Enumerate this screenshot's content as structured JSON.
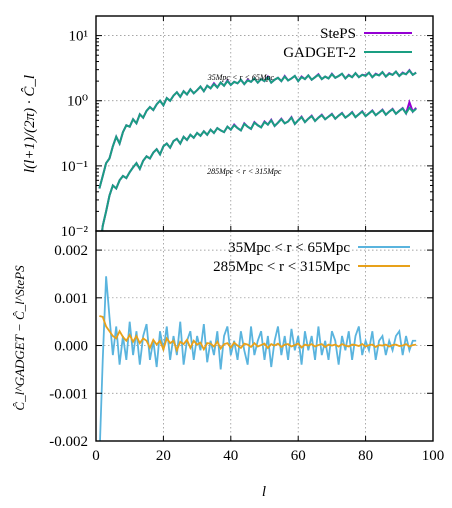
{
  "chart_data": [
    {
      "type": "line",
      "panel": "top",
      "ylabel": "l(l+1)/(2π) · Ĉ_l",
      "xlim": [
        0,
        100
      ],
      "ylim": [
        0.01,
        20
      ],
      "yscale": "log",
      "grid": true,
      "legend_position": "top-right",
      "yticks": [
        {
          "value": 10,
          "label": "10¹"
        },
        {
          "value": 1,
          "label": "10⁰"
        },
        {
          "value": 0.1,
          "label": "10⁻¹"
        },
        {
          "value": 0.01,
          "label": "10⁻²"
        }
      ],
      "series": [
        {
          "name": "StePS",
          "color": "#9400d3"
        },
        {
          "name": "GADGET-2",
          "color": "#1a9e82"
        }
      ],
      "annotations": [
        {
          "text": "35Mpc < r < 65Mpc",
          "x": 43,
          "y": 2.1
        },
        {
          "text": "285Mpc < r < 315Mpc",
          "x": 44,
          "y": 0.075
        }
      ],
      "curves": [
        {
          "label": "35Mpc < r < 65Mpc",
          "x": [
            1,
            2,
            3,
            4,
            5,
            6,
            7,
            8,
            9,
            10,
            11,
            12,
            13,
            14,
            15,
            16,
            17,
            18,
            19,
            20,
            21,
            22,
            23,
            24,
            25,
            26,
            27,
            28,
            29,
            30,
            31,
            32,
            33,
            34,
            35,
            36,
            37,
            38,
            39,
            40,
            41,
            42,
            43,
            44,
            45,
            46,
            47,
            48,
            49,
            50,
            51,
            52,
            53,
            54,
            55,
            56,
            57,
            58,
            59,
            60,
            61,
            62,
            63,
            64,
            65,
            66,
            67,
            68,
            69,
            70,
            71,
            72,
            73,
            74,
            75,
            76,
            77,
            78,
            79,
            80,
            81,
            82,
            83,
            84,
            85,
            86,
            87,
            88,
            89,
            90,
            91,
            92,
            93,
            94,
            95
          ],
          "gadget": [
            0.045,
            0.07,
            0.11,
            0.13,
            0.2,
            0.28,
            0.22,
            0.33,
            0.42,
            0.4,
            0.52,
            0.45,
            0.62,
            0.55,
            0.7,
            0.8,
            0.72,
            0.88,
            1.0,
            0.85,
            1.1,
            1.0,
            1.2,
            1.35,
            1.15,
            1.4,
            1.25,
            1.5,
            1.3,
            1.45,
            1.65,
            1.4,
            1.7,
            1.55,
            1.8,
            1.6,
            1.9,
            1.7,
            2.0,
            1.75,
            1.95,
            1.85,
            2.1,
            1.8,
            2.05,
            1.95,
            2.2,
            1.9,
            2.15,
            2.0,
            2.3,
            1.9,
            2.1,
            2.25,
            2.0,
            2.35,
            2.05,
            2.2,
            2.4,
            2.0,
            2.3,
            2.15,
            2.45,
            2.1,
            2.3,
            2.5,
            2.15,
            2.35,
            2.2,
            2.55,
            2.25,
            2.4,
            2.6,
            2.2,
            2.45,
            2.3,
            2.65,
            2.3,
            2.5,
            2.4,
            2.7,
            2.3,
            2.55,
            2.45,
            2.75,
            2.35,
            2.6,
            2.5,
            2.8,
            2.4,
            2.65,
            2.55,
            2.9,
            2.5,
            2.7
          ],
          "steps": [
            0.045,
            0.07,
            0.11,
            0.13,
            0.2,
            0.28,
            0.22,
            0.33,
            0.42,
            0.4,
            0.52,
            0.45,
            0.62,
            0.55,
            0.7,
            0.8,
            0.72,
            0.88,
            1.0,
            0.85,
            1.1,
            1.0,
            1.2,
            1.35,
            1.15,
            1.4,
            1.25,
            1.5,
            1.3,
            1.45,
            1.65,
            1.4,
            1.7,
            1.55,
            1.85,
            1.6,
            1.9,
            1.7,
            2.05,
            1.75,
            1.95,
            1.85,
            2.1,
            1.8,
            2.1,
            1.95,
            2.2,
            1.9,
            2.15,
            2.0,
            2.35,
            1.9,
            2.1,
            2.25,
            2.0,
            2.4,
            2.05,
            2.2,
            2.4,
            2.0,
            2.35,
            2.15,
            2.45,
            2.1,
            2.3,
            2.55,
            2.15,
            2.35,
            2.2,
            2.6,
            2.25,
            2.4,
            2.6,
            2.2,
            2.5,
            2.3,
            2.65,
            2.3,
            2.5,
            2.45,
            2.7,
            2.3,
            2.6,
            2.45,
            2.75,
            2.35,
            2.65,
            2.5,
            2.8,
            2.4,
            2.7,
            2.55,
            2.95,
            2.5,
            2.7
          ]
        },
        {
          "label": "285Mpc < r < 315Mpc",
          "x": [
            1,
            2,
            3,
            4,
            5,
            6,
            7,
            8,
            9,
            10,
            11,
            12,
            13,
            14,
            15,
            16,
            17,
            18,
            19,
            20,
            21,
            22,
            23,
            24,
            25,
            26,
            27,
            28,
            29,
            30,
            31,
            32,
            33,
            34,
            35,
            36,
            37,
            38,
            39,
            40,
            41,
            42,
            43,
            44,
            45,
            46,
            47,
            48,
            49,
            50,
            51,
            52,
            53,
            54,
            55,
            56,
            57,
            58,
            59,
            60,
            61,
            62,
            63,
            64,
            65,
            66,
            67,
            68,
            69,
            70,
            71,
            72,
            73,
            74,
            75,
            76,
            77,
            78,
            79,
            80,
            81,
            82,
            83,
            84,
            85,
            86,
            87,
            88,
            89,
            90,
            91,
            92,
            93,
            94,
            95
          ],
          "gadget": [
            0.0045,
            0.012,
            0.02,
            0.035,
            0.05,
            0.045,
            0.06,
            0.07,
            0.065,
            0.08,
            0.095,
            0.11,
            0.09,
            0.12,
            0.14,
            0.13,
            0.16,
            0.18,
            0.15,
            0.2,
            0.22,
            0.19,
            0.24,
            0.26,
            0.22,
            0.28,
            0.25,
            0.3,
            0.27,
            0.32,
            0.29,
            0.34,
            0.3,
            0.36,
            0.32,
            0.38,
            0.35,
            0.33,
            0.4,
            0.36,
            0.42,
            0.38,
            0.35,
            0.44,
            0.4,
            0.37,
            0.46,
            0.42,
            0.39,
            0.47,
            0.43,
            0.5,
            0.41,
            0.46,
            0.52,
            0.45,
            0.48,
            0.55,
            0.44,
            0.5,
            0.56,
            0.47,
            0.53,
            0.58,
            0.49,
            0.55,
            0.6,
            0.52,
            0.57,
            0.62,
            0.53,
            0.59,
            0.64,
            0.55,
            0.6,
            0.66,
            0.56,
            0.62,
            0.68,
            0.58,
            0.64,
            0.7,
            0.6,
            0.66,
            0.72,
            0.61,
            0.68,
            0.74,
            0.63,
            0.7,
            0.76,
            0.64,
            0.78,
            0.68,
            0.75
          ],
          "steps": [
            0.0045,
            0.012,
            0.02,
            0.035,
            0.05,
            0.045,
            0.06,
            0.07,
            0.065,
            0.08,
            0.095,
            0.11,
            0.09,
            0.12,
            0.14,
            0.13,
            0.16,
            0.18,
            0.15,
            0.2,
            0.22,
            0.19,
            0.24,
            0.26,
            0.22,
            0.28,
            0.25,
            0.3,
            0.27,
            0.32,
            0.29,
            0.34,
            0.3,
            0.36,
            0.32,
            0.38,
            0.35,
            0.33,
            0.4,
            0.36,
            0.43,
            0.38,
            0.35,
            0.45,
            0.4,
            0.37,
            0.47,
            0.42,
            0.39,
            0.48,
            0.43,
            0.51,
            0.41,
            0.46,
            0.53,
            0.45,
            0.48,
            0.56,
            0.44,
            0.5,
            0.57,
            0.47,
            0.53,
            0.59,
            0.49,
            0.55,
            0.61,
            0.52,
            0.57,
            0.63,
            0.53,
            0.59,
            0.65,
            0.55,
            0.6,
            0.67,
            0.56,
            0.62,
            0.69,
            0.58,
            0.64,
            0.71,
            0.6,
            0.66,
            0.73,
            0.61,
            0.68,
            0.75,
            0.63,
            0.7,
            0.77,
            0.64,
            0.95,
            0.68,
            0.78
          ]
        }
      ]
    },
    {
      "type": "line",
      "panel": "bottom",
      "xlabel": "l",
      "ylabel": "Ĉ_l^GADGET − Ĉ_l^StePS",
      "xlim": [
        0,
        100
      ],
      "ylim": [
        -0.002,
        0.0024
      ],
      "grid": true,
      "legend_position": "top-right",
      "xticks": [
        0,
        20,
        40,
        60,
        80,
        100
      ],
      "yticks": [
        {
          "value": 0.002,
          "label": "0.002"
        },
        {
          "value": 0.001,
          "label": "0.001"
        },
        {
          "value": 0.0,
          "label": "0.000"
        },
        {
          "value": -0.001,
          "label": "-0.001"
        },
        {
          "value": -0.002,
          "label": "-0.002"
        }
      ],
      "series": [
        {
          "name": "35Mpc < r < 65Mpc",
          "color": "#5ab4de",
          "x": [
            1,
            2,
            3,
            4,
            5,
            6,
            7,
            8,
            9,
            10,
            11,
            12,
            13,
            14,
            15,
            16,
            17,
            18,
            19,
            20,
            21,
            22,
            23,
            24,
            25,
            26,
            27,
            28,
            29,
            30,
            31,
            32,
            33,
            34,
            35,
            36,
            37,
            38,
            39,
            40,
            41,
            42,
            43,
            44,
            45,
            46,
            47,
            48,
            49,
            50,
            51,
            52,
            53,
            54,
            55,
            56,
            57,
            58,
            59,
            60,
            61,
            62,
            63,
            64,
            65,
            66,
            67,
            68,
            69,
            70,
            71,
            72,
            73,
            74,
            75,
            76,
            77,
            78,
            79,
            80,
            81,
            82,
            83,
            84,
            85,
            86,
            87,
            88,
            89,
            90,
            91,
            92,
            93,
            94,
            95
          ],
          "values": [
            -0.0024,
            -0.0003,
            0.00145,
            0.0006,
            -0.0002,
            0.0004,
            -0.0004,
            0.0002,
            -0.0003,
            0.0005,
            -0.0002,
            0.0003,
            -0.0004,
            0.0002,
            0.00045,
            -0.0003,
            0.0001,
            -0.00045,
            0.0003,
            -0.0001,
            0.0004,
            -0.0003,
            0.0002,
            -0.0002,
            0.0005,
            -0.0004,
            0.0001,
            0.0003,
            -0.0003,
            0.0002,
            -0.0001,
            0.00045,
            -0.00035,
            0.0001,
            -0.0002,
            0.0003,
            -0.0005,
            0.0002,
            0.0004,
            -0.0002,
            0.0001,
            -0.0003,
            0.0003,
            -0.0001,
            -0.0004,
            0.0004,
            -0.0002,
            0.0001,
            0.0003,
            -0.0003,
            0.0002,
            -0.00045,
            0.0001,
            0.0004,
            -0.0002,
            0.0002,
            -0.0003,
            0.00035,
            -0.0001,
            0.0002,
            -0.0004,
            0.0003,
            -0.0001,
            0.0002,
            -0.0003,
            0.0004,
            -0.0002,
            0.0001,
            -0.0003,
            0.0003,
            0.0001,
            -0.0004,
            0.0002,
            -0.0001,
            0.0003,
            -0.0003,
            0.0002,
            0.0004,
            -0.0002,
            0.0001,
            -0.0001,
            0.0003,
            -0.0003,
            0.0001,
            0.0002,
            -0.0002,
            0.0001,
            -0.0001,
            0.0002,
            0.0003,
            -0.0002,
            0.0002,
            -0.0001,
            0.0001,
            0.0001
          ]
        },
        {
          "name": "285Mpc < r < 315Mpc",
          "color": "#e8a11a",
          "x": [
            1,
            2,
            3,
            4,
            5,
            6,
            7,
            8,
            9,
            10,
            11,
            12,
            13,
            14,
            15,
            16,
            17,
            18,
            19,
            20,
            21,
            22,
            23,
            24,
            25,
            26,
            27,
            28,
            29,
            30,
            31,
            32,
            33,
            34,
            35,
            36,
            37,
            38,
            39,
            40,
            41,
            42,
            43,
            44,
            45,
            46,
            47,
            48,
            49,
            50,
            51,
            52,
            53,
            54,
            55,
            56,
            57,
            58,
            59,
            60,
            61,
            62,
            63,
            64,
            65,
            66,
            67,
            68,
            69,
            70,
            71,
            72,
            73,
            74,
            75,
            76,
            77,
            78,
            79,
            80,
            81,
            82,
            83,
            84,
            85,
            86,
            87,
            88,
            89,
            90,
            91,
            92,
            93,
            94,
            95
          ],
          "values": [
            0.00062,
            0.0006,
            0.0004,
            0.0003,
            0.0002,
            0.00015,
            0.0003,
            0.00018,
            0.0001,
            0.00022,
            8e-05,
            0.0002,
            5e-05,
            0.00015,
            0.0001,
            -5e-05,
            0.00012,
            2e-05,
            0.0001,
            -8e-05,
            0.00015,
            5e-05,
            0.0001,
            -0.0001,
            8e-05,
            3e-05,
            0.00012,
            -5e-05,
            0.0001,
            2e-05,
            6e-05,
            -8e-05,
            5e-05,
            4e-05,
            -2e-05,
            8e-05,
            -6e-05,
            3e-05,
            5e-05,
            -4e-05,
            6e-05,
            0.0,
            -5e-05,
            4e-05,
            2e-05,
            -3e-05,
            5e-05,
            -2e-05,
            1e-05,
            4e-05,
            -5e-05,
            3e-05,
            0.0,
            4e-05,
            -3e-05,
            2e-05,
            3e-05,
            -2e-05,
            1e-05,
            4e-05,
            -4e-05,
            2e-05,
            0.0,
            3e-05,
            -2e-05,
            1e-05,
            3e-05,
            -3e-05,
            2e-05,
            0.0,
            2e-05,
            -2e-05,
            3e-05,
            0.0,
            -2e-05,
            2e-05,
            1e-05,
            -1e-05,
            3e-05,
            -2e-05,
            1e-05,
            2e-05,
            -3e-05,
            1e-05,
            0.0,
            2e-05,
            -2e-05,
            1e-05,
            2e-05,
            -1e-05,
            0.0,
            3e-05,
            -2e-05,
            1e-05,
            2e-05
          ]
        }
      ]
    }
  ]
}
